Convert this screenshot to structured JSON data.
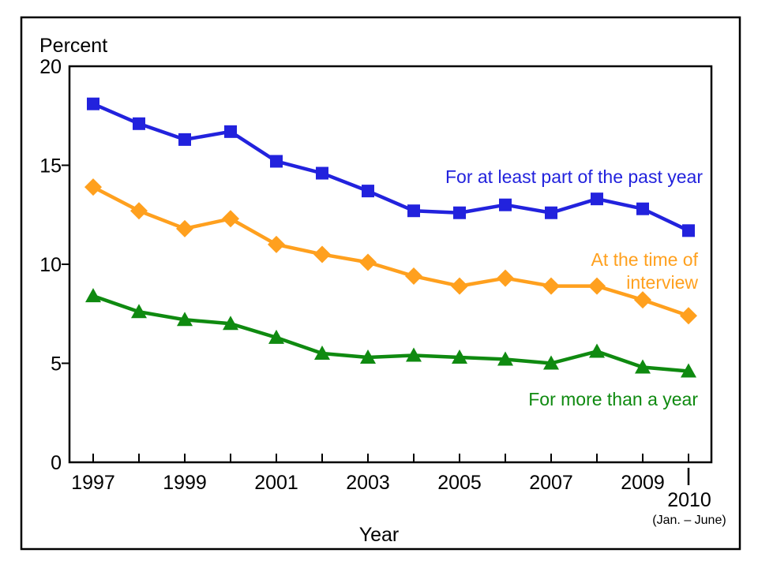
{
  "figure": {
    "y_axis_title": "Percent",
    "x_axis_title": "Year",
    "x_note_year": "2010",
    "x_note_range": "(Jan. – June)"
  },
  "colors": {
    "part_year": "#2222dd",
    "interview": "#ffa01e",
    "more_year": "#0f8a10",
    "axis": "#000000"
  },
  "legend": {
    "part_year": "For at least part of the past year",
    "interview_line1": "At the time of",
    "interview_line2": "interview",
    "more_year": "For more than a year"
  },
  "chart_data": {
    "type": "line",
    "title": "",
    "xlabel": "Year",
    "ylabel": "Percent",
    "ylim": [
      0,
      20
    ],
    "y_ticks": [
      0,
      5,
      10,
      15,
      20
    ],
    "x": [
      1997,
      1998,
      1999,
      2000,
      2001,
      2002,
      2003,
      2004,
      2005,
      2006,
      2007,
      2008,
      2009,
      2010
    ],
    "x_tick_labels_shown": [
      "1997",
      "1999",
      "2001",
      "2003",
      "2005",
      "2007",
      "2009"
    ],
    "x_note": "2010 (Jan. – June)",
    "legend_position": "inline-right",
    "grid": false,
    "series": [
      {
        "name": "For at least part of the past year",
        "marker": "square",
        "color": "#2222dd",
        "values": [
          18.1,
          17.1,
          16.3,
          16.7,
          15.2,
          14.6,
          13.7,
          12.7,
          12.6,
          13.0,
          12.6,
          13.3,
          12.8,
          11.7
        ]
      },
      {
        "name": "At the time of interview",
        "marker": "diamond",
        "color": "#ffa01e",
        "values": [
          13.9,
          12.7,
          11.8,
          12.3,
          11.0,
          10.5,
          10.1,
          9.4,
          8.9,
          9.3,
          8.9,
          8.9,
          8.2,
          7.4
        ]
      },
      {
        "name": "For more than a year",
        "marker": "triangle",
        "color": "#0f8a10",
        "values": [
          8.4,
          7.6,
          7.2,
          7.0,
          6.3,
          5.5,
          5.3,
          5.4,
          5.3,
          5.2,
          5.0,
          5.6,
          4.8,
          4.6
        ]
      }
    ]
  }
}
